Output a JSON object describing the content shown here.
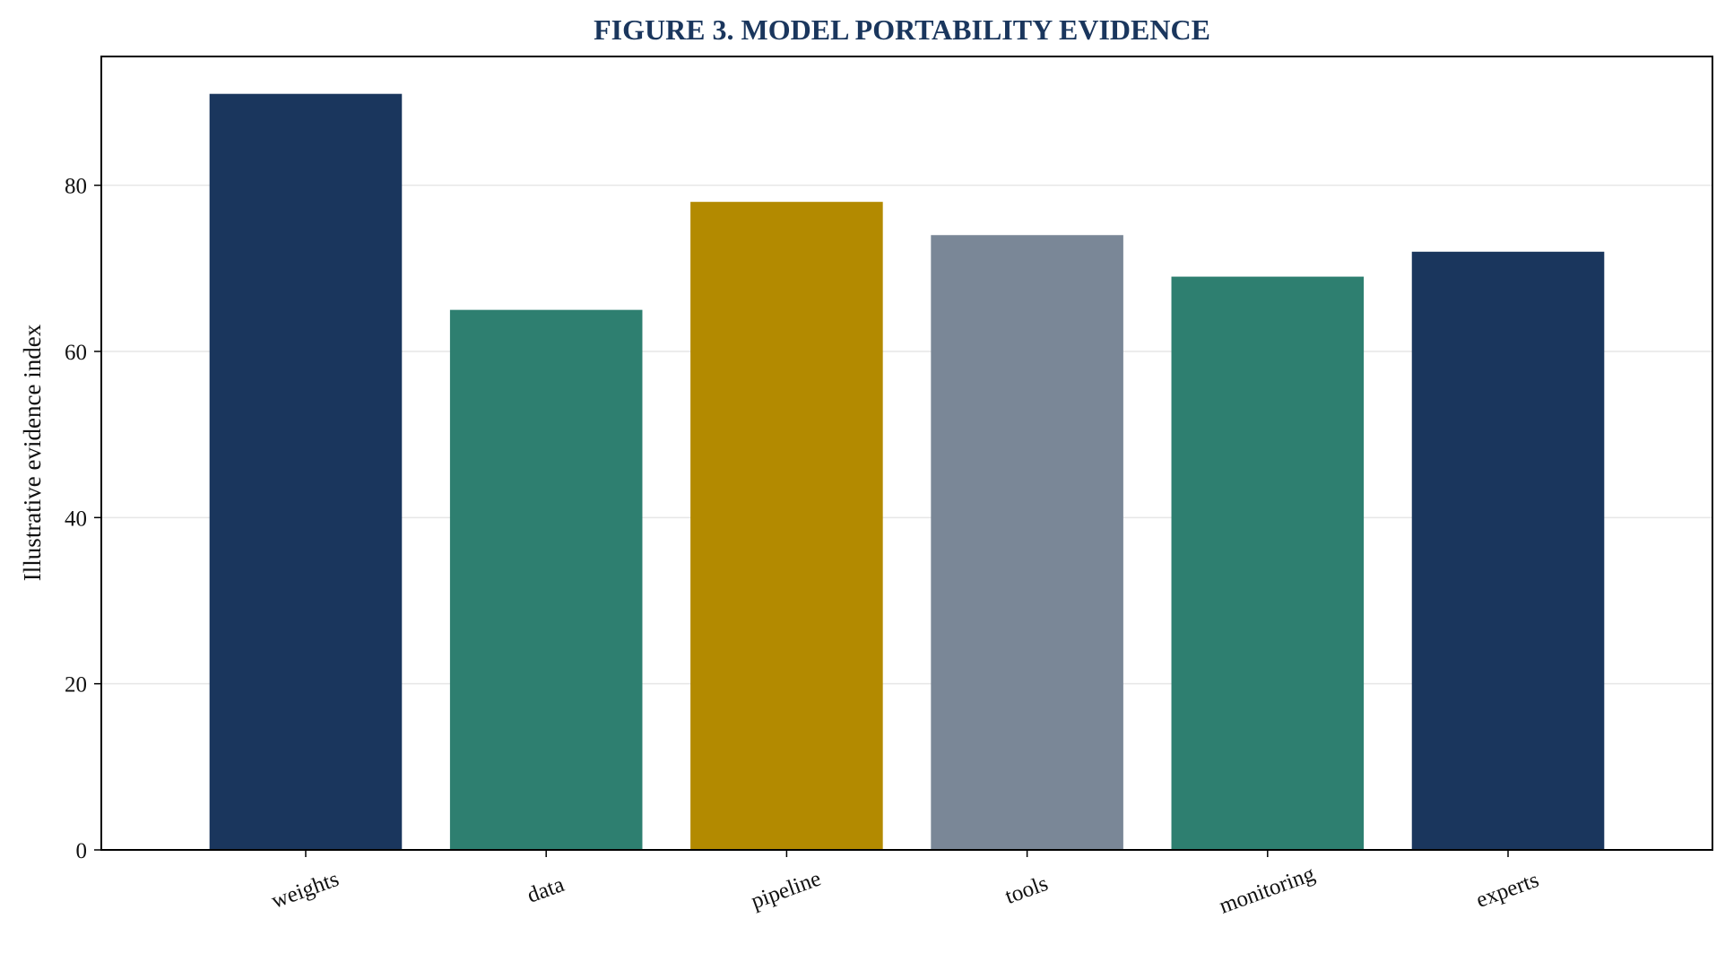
{
  "chart_data": {
    "type": "bar",
    "title": "FIGURE 3. MODEL PORTABILITY EVIDENCE",
    "xlabel": "",
    "ylabel": "Illustrative evidence index",
    "categories": [
      "weights",
      "data",
      "pipeline",
      "tools",
      "monitoring",
      "experts"
    ],
    "values": [
      91,
      65,
      78,
      74,
      69,
      72
    ],
    "bar_colors": [
      "#1a365d",
      "#2e7f70",
      "#b38a00",
      "#7a8797",
      "#2e7f70",
      "#1a365d"
    ],
    "ylim": [
      0,
      95.5
    ],
    "yticks": [
      0,
      20,
      40,
      60,
      80
    ],
    "grid": true,
    "legend": "none"
  },
  "colors": {
    "title": "#1a365d",
    "axis": "#000000",
    "grid": "#e6e6e6"
  }
}
